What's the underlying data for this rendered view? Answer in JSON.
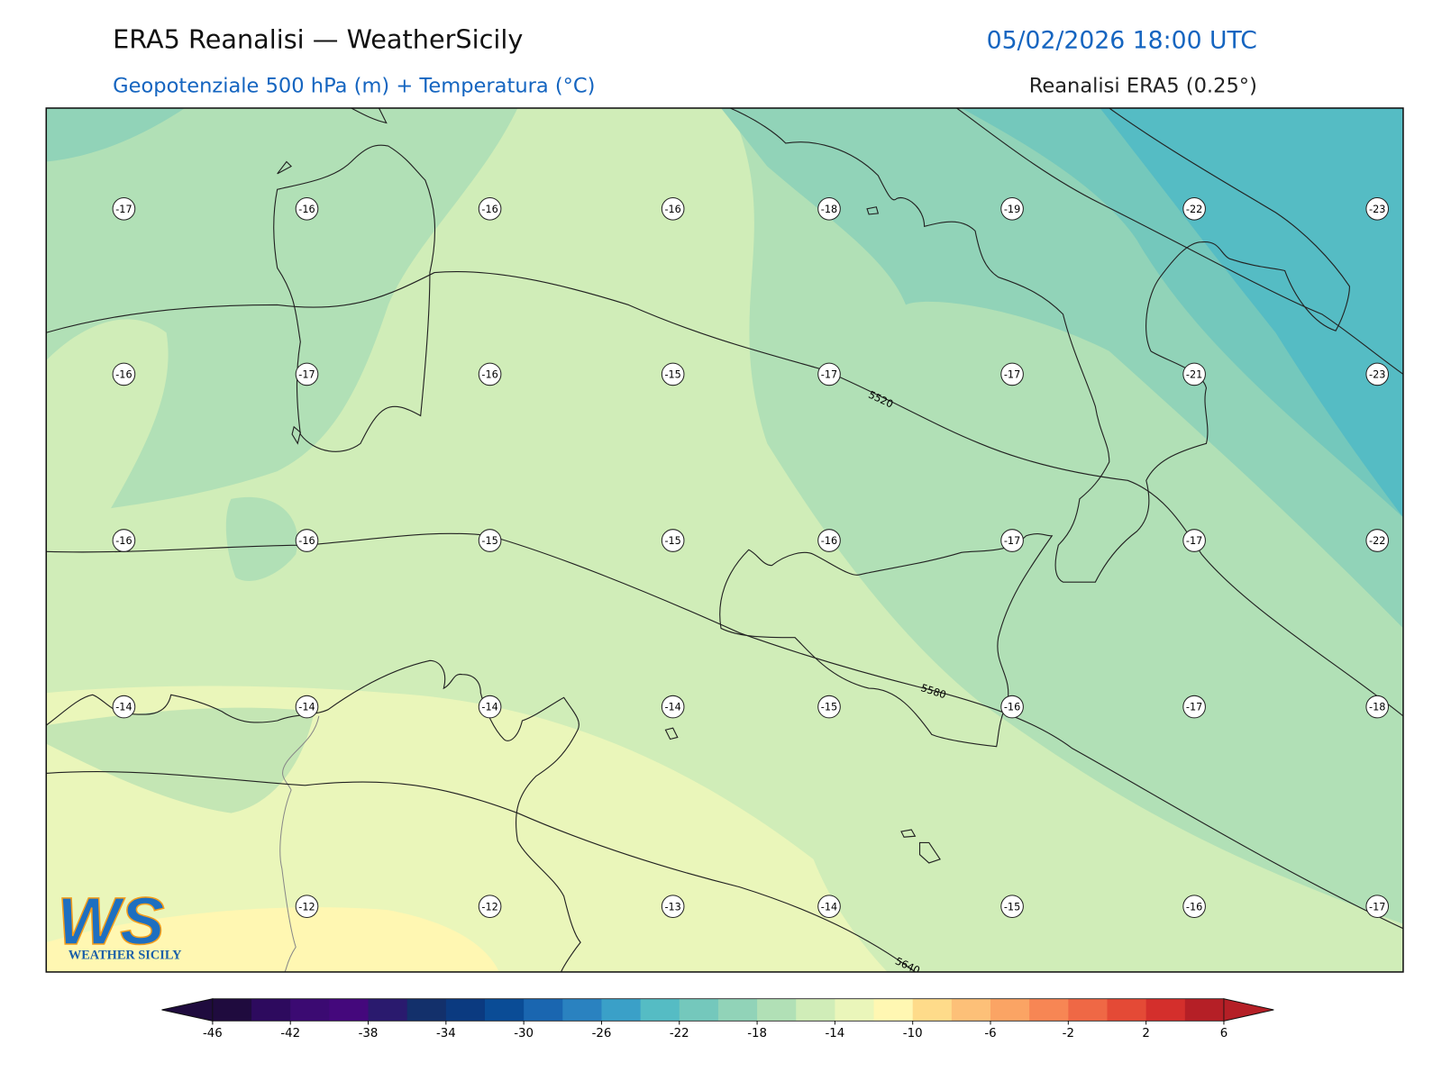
{
  "header": {
    "title": "ERA5 Reanalisi — WeatherSicily",
    "subtitle": "Geopotenziale 500 hPa (m) + Temperatura (°C)",
    "datetime": "05/02/2026 18:00 UTC",
    "source": "Reanalisi ERA5 (0.25°)"
  },
  "map": {
    "temperature_rows": [
      [
        -17,
        -16,
        -16,
        -16,
        -18,
        -19,
        -22,
        -23
      ],
      [
        -16,
        -17,
        -16,
        -15,
        -17,
        -17,
        -21,
        -23
      ],
      [
        -16,
        -16,
        -15,
        -15,
        -16,
        -17,
        -17,
        -22
      ],
      [
        -14,
        -14,
        -14,
        -14,
        -15,
        -16,
        -17,
        -18
      ],
      [
        null,
        -12,
        -12,
        -13,
        -14,
        -15,
        -16,
        -17
      ]
    ],
    "contour_labels": [
      "5520",
      "5580",
      "5640"
    ]
  },
  "colorbar": {
    "range": [
      -46,
      6
    ],
    "ticks": [
      -46,
      -42,
      -38,
      -34,
      -30,
      -26,
      -22,
      -18,
      -14,
      -10,
      -6,
      -2,
      2,
      6
    ],
    "colors": [
      "#1f0b3e",
      "#2d0a5e",
      "#3b0a72",
      "#44087c",
      "#2a1a6e",
      "#13306b",
      "#0b3a80",
      "#0a4c96",
      "#1a66b0",
      "#2a82c0",
      "#3aa0c8",
      "#55bcc4",
      "#74c8bc",
      "#91d3b8",
      "#b1e0b6",
      "#d0edb8",
      "#eaf6ba",
      "#fff7b2",
      "#fedb8a",
      "#fdc078",
      "#fba464",
      "#f78654",
      "#ef6845",
      "#e44a36",
      "#d42f2c",
      "#b51f26"
    ]
  },
  "logo": {
    "mark": "WS",
    "name": "WEATHER SICILY"
  }
}
